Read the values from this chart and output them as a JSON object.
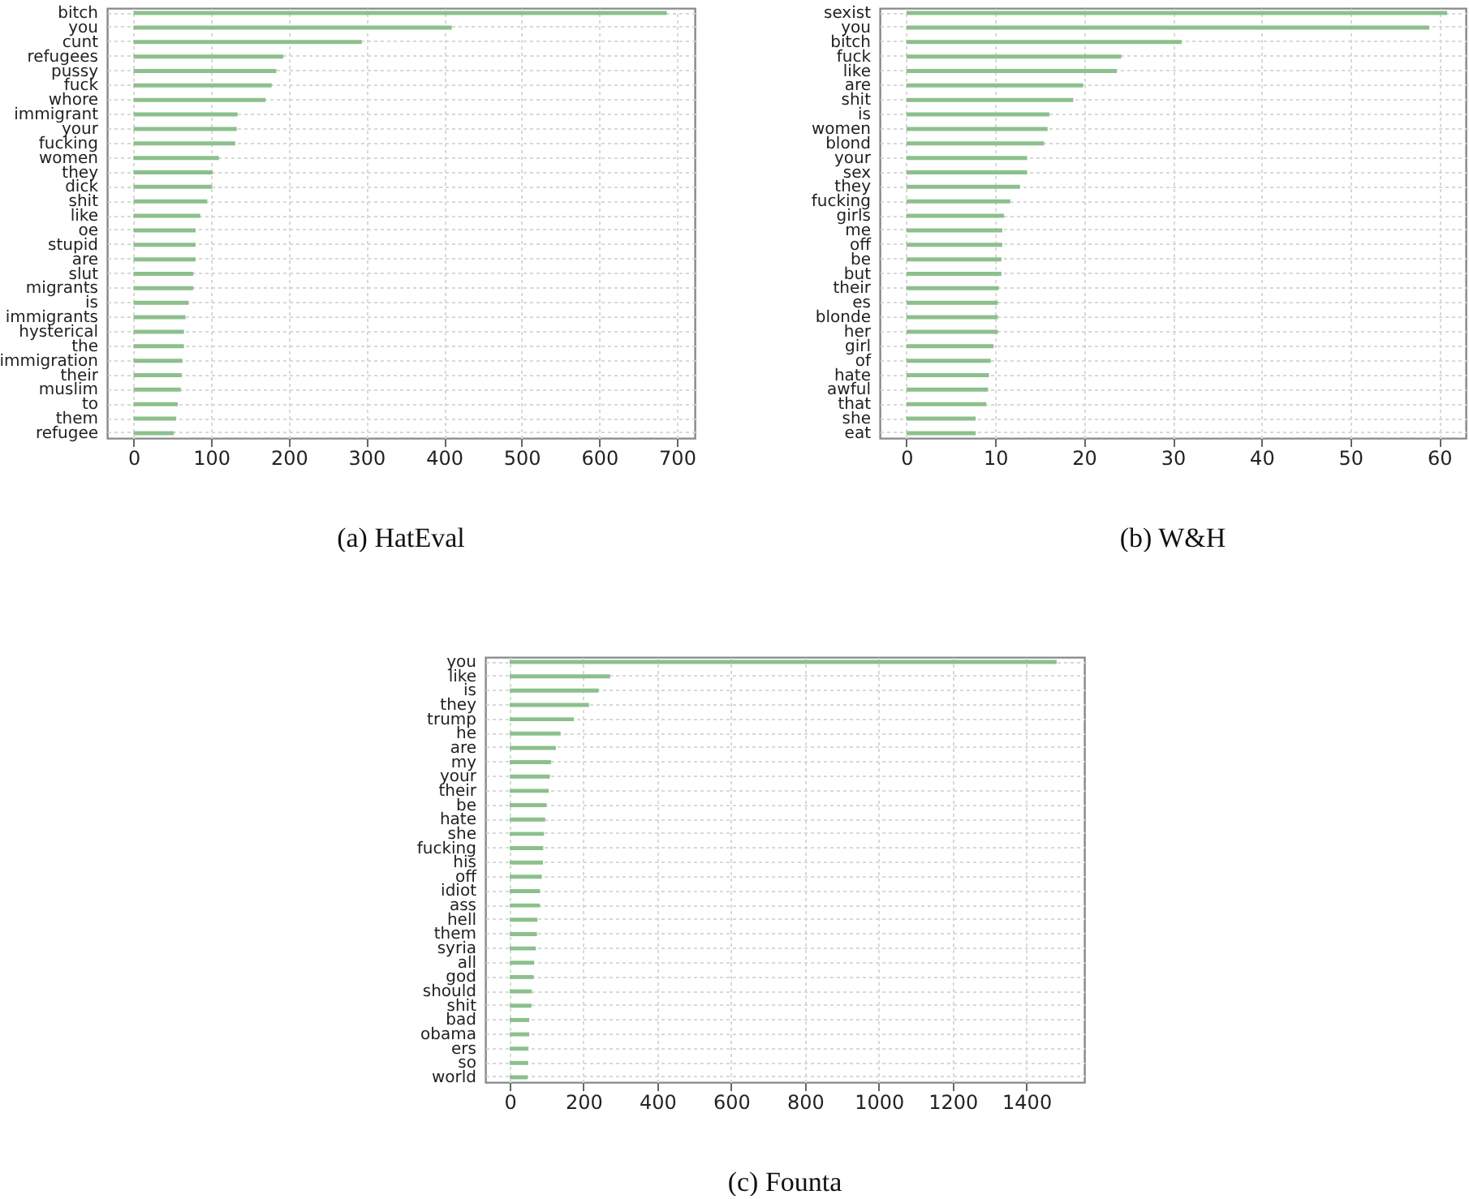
{
  "chart_data": [
    {
      "type": "bar",
      "orientation": "horizontal",
      "title": "(a)  HatEval",
      "color": "#8cc08c",
      "grid": true,
      "categories": [
        "bitch",
        "you",
        "cunt",
        "refugees",
        "pussy",
        "fuck",
        "whore",
        "immigrant",
        "your",
        "fucking",
        "women",
        "they",
        "dick",
        "shit",
        "like",
        "oe",
        "stupid",
        "are",
        "slut",
        "migrants",
        "is",
        "immigrants",
        "hysterical",
        "the",
        "immigration",
        "their",
        "muslim",
        "to",
        "them",
        "refugee"
      ],
      "values": [
        687,
        410,
        294,
        193,
        184,
        178,
        170,
        134,
        133,
        131,
        110,
        102,
        101,
        95,
        86,
        80,
        80,
        80,
        77,
        77,
        71,
        67,
        65,
        65,
        63,
        62,
        61,
        57,
        55,
        52
      ],
      "xlim": [
        -34,
        723
      ],
      "xticks": [
        0,
        100,
        200,
        300,
        400,
        500,
        600,
        700
      ]
    },
    {
      "type": "bar",
      "orientation": "horizontal",
      "title": "(b)  W&H",
      "color": "#8cc08c",
      "grid": true,
      "categories": [
        "sexist",
        "you",
        "bitch",
        "fuck",
        "like",
        "are",
        "shit",
        "is",
        "women",
        "blond",
        "your",
        "sex",
        "they",
        "fucking",
        "girls",
        "me",
        "off",
        "be",
        "but",
        "their",
        "es",
        "blonde",
        "her",
        "girl",
        "of",
        "hate",
        "awful",
        "that",
        "she",
        "eat"
      ],
      "values": [
        60.9,
        58.9,
        31.0,
        24.2,
        23.7,
        19.9,
        18.8,
        16.1,
        15.9,
        15.5,
        13.6,
        13.6,
        12.8,
        11.7,
        11.0,
        10.8,
        10.8,
        10.7,
        10.7,
        10.4,
        10.3,
        10.3,
        10.3,
        9.8,
        9.5,
        9.3,
        9.2,
        9.0,
        7.8,
        7.8
      ],
      "xlim": [
        -3,
        63
      ],
      "xticks": [
        0,
        10,
        20,
        30,
        40,
        50,
        60
      ]
    },
    {
      "type": "bar",
      "orientation": "horizontal",
      "title": "(c)  Founta",
      "color": "#8cc08c",
      "grid": true,
      "categories": [
        "you",
        "like",
        "is",
        "they",
        "trump",
        "he",
        "are",
        "my",
        "your",
        "their",
        "be",
        "hate",
        "she",
        "fucking",
        "his",
        "off",
        "idiot",
        "ass",
        "hell",
        "them",
        "syria",
        "all",
        "god",
        "should",
        "shit",
        "bad",
        "obama",
        "ers",
        "so",
        "world"
      ],
      "values": [
        1482,
        272,
        241,
        215,
        174,
        138,
        125,
        112,
        109,
        106,
        100,
        96,
        93,
        91,
        90,
        87,
        82,
        82,
        75,
        74,
        71,
        66,
        65,
        60,
        59,
        53,
        53,
        51,
        50,
        49
      ],
      "xlim": [
        -66,
        1557
      ],
      "xticks": [
        0,
        200,
        400,
        600,
        800,
        1000,
        1200,
        1400
      ]
    }
  ]
}
